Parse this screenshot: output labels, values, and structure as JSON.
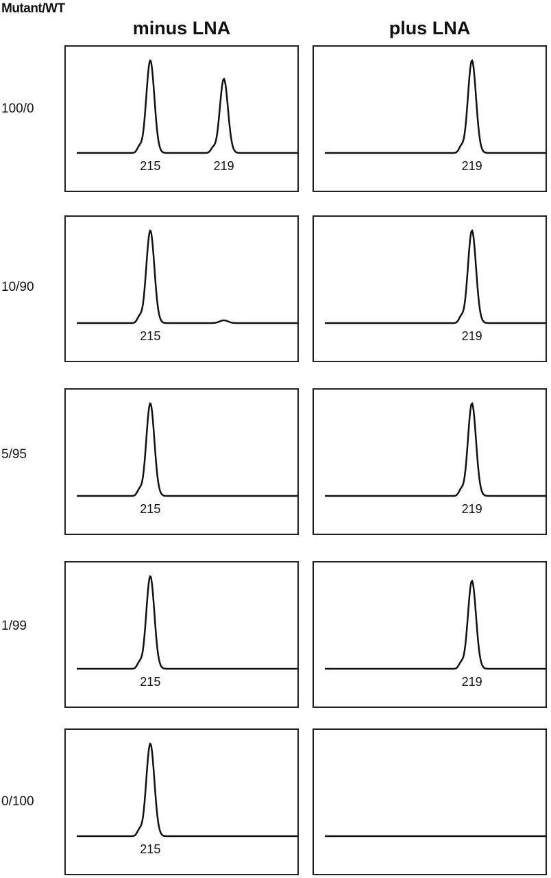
{
  "corner_label": "Mutant/WT",
  "columns": [
    {
      "label": "minus LNA"
    },
    {
      "label": "plus LNA"
    }
  ],
  "rows": [
    {
      "label": "100/0"
    },
    {
      "label": "10/90"
    },
    {
      "label": "5/95"
    },
    {
      "label": "1/99"
    },
    {
      "label": "0/100"
    }
  ],
  "chart_data": {
    "type": "line",
    "description_units": "fragment size (bp) on x; relative peak intensity on y",
    "xlim": [
      211,
      223
    ],
    "ylim": [
      0,
      1
    ],
    "panels": [
      {
        "row": "100/0",
        "column": "minus LNA",
        "peaks": [
          {
            "label": "215",
            "x": 215,
            "height": 1.0
          },
          {
            "label": "219",
            "x": 219,
            "height": 0.8
          }
        ]
      },
      {
        "row": "100/0",
        "column": "plus LNA",
        "peaks": [
          {
            "label": "219",
            "x": 219,
            "height": 1.0
          }
        ]
      },
      {
        "row": "10/90",
        "column": "minus LNA",
        "peaks": [
          {
            "label": "215",
            "x": 215,
            "height": 1.0
          },
          {
            "label": "",
            "x": 219,
            "height": 0.03
          }
        ]
      },
      {
        "row": "10/90",
        "column": "plus LNA",
        "peaks": [
          {
            "label": "219",
            "x": 219,
            "height": 1.0
          }
        ]
      },
      {
        "row": "5/95",
        "column": "minus LNA",
        "peaks": [
          {
            "label": "215",
            "x": 215,
            "height": 1.0
          }
        ]
      },
      {
        "row": "5/95",
        "column": "plus LNA",
        "peaks": [
          {
            "label": "219",
            "x": 219,
            "height": 1.0
          }
        ]
      },
      {
        "row": "1/99",
        "column": "minus LNA",
        "peaks": [
          {
            "label": "215",
            "x": 215,
            "height": 1.0
          }
        ]
      },
      {
        "row": "1/99",
        "column": "plus LNA",
        "peaks": [
          {
            "label": "219",
            "x": 219,
            "height": 0.95
          }
        ]
      },
      {
        "row": "0/100",
        "column": "minus LNA",
        "peaks": [
          {
            "label": "215",
            "x": 215,
            "height": 1.0
          }
        ]
      },
      {
        "row": "0/100",
        "column": "plus LNA",
        "peaks": []
      }
    ]
  }
}
